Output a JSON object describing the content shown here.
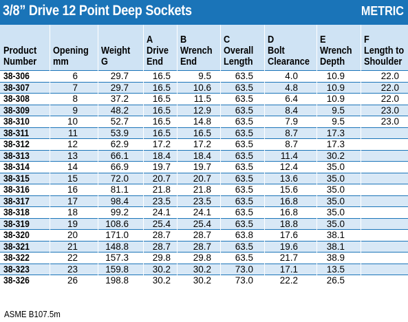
{
  "title": "3/8” Drive 12 Point Deep Sockets",
  "badge": "METRIC",
  "footnote": "ASME B107.5m",
  "colors": {
    "header_bar": "#1a74b8",
    "header_row": "#cfe3f4",
    "stripe": "#d8e8f6"
  },
  "columns": [
    {
      "key": "product",
      "lines": [
        "Product",
        "Number"
      ]
    },
    {
      "key": "opening",
      "lines": [
        "Opening",
        "mm"
      ]
    },
    {
      "key": "weight",
      "lines": [
        "Weight",
        "G"
      ]
    },
    {
      "key": "a",
      "lines": [
        "A",
        "Drive",
        "End"
      ]
    },
    {
      "key": "b",
      "lines": [
        "B",
        "Wrench",
        "End"
      ]
    },
    {
      "key": "c",
      "lines": [
        "C",
        "Overall",
        "Length"
      ]
    },
    {
      "key": "d",
      "lines": [
        "D",
        "Bolt",
        "Clearance"
      ]
    },
    {
      "key": "e",
      "lines": [
        "E",
        "Wrench",
        "Depth"
      ]
    },
    {
      "key": "f",
      "lines": [
        "F",
        "Length to",
        "Shoulder"
      ]
    }
  ],
  "rows": [
    [
      "38-306",
      "6",
      "29.7",
      "16.5",
      "9.5",
      "63.5",
      "4.0",
      "10.9",
      "22.0"
    ],
    [
      "38-307",
      "7",
      "29.7",
      "16.5",
      "10.6",
      "63.5",
      "4.8",
      "10.9",
      "22.0"
    ],
    [
      "38-308",
      "8",
      "37.2",
      "16.5",
      "11.5",
      "63.5",
      "6.4",
      "10.9",
      "22.0"
    ],
    [
      "38-309",
      "9",
      "48.2",
      "16.5",
      "12.9",
      "63.5",
      "8.4",
      "9.5",
      "23.0"
    ],
    [
      "38-310",
      "10",
      "52.7",
      "16.5",
      "14.8",
      "63.5",
      "7.9",
      "9.5",
      "23.0"
    ],
    [
      "38-311",
      "11",
      "53.9",
      "16.5",
      "16.5",
      "63.5",
      "8.7",
      "17.3",
      ""
    ],
    [
      "38-312",
      "12",
      "62.9",
      "17.2",
      "17.2",
      "63.5",
      "8.7",
      "17.3",
      ""
    ],
    [
      "38-313",
      "13",
      "66.1",
      "18.4",
      "18.4",
      "63.5",
      "11.4",
      "30.2",
      ""
    ],
    [
      "38-314",
      "14",
      "66.9",
      "19.7",
      "19.7",
      "63.5",
      "12.4",
      "35.0",
      ""
    ],
    [
      "38-315",
      "15",
      "72.0",
      "20.7",
      "20.7",
      "63.5",
      "13.6",
      "35.0",
      ""
    ],
    [
      "38-316",
      "16",
      "81.1",
      "21.8",
      "21.8",
      "63.5",
      "15.6",
      "35.0",
      ""
    ],
    [
      "38-317",
      "17",
      "98.4",
      "23.5",
      "23.5",
      "63.5",
      "16.8",
      "35.0",
      ""
    ],
    [
      "38-318",
      "18",
      "99.2",
      "24.1",
      "24.1",
      "63.5",
      "16.8",
      "35.0",
      ""
    ],
    [
      "38-319",
      "19",
      "108.6",
      "25.4",
      "25.4",
      "63.5",
      "18.8",
      "35.0",
      ""
    ],
    [
      "38-320",
      "20",
      "171.0",
      "28.7",
      "28.7",
      "63.8",
      "17.6",
      "38.1",
      ""
    ],
    [
      "38-321",
      "21",
      "148.8",
      "28.7",
      "28.7",
      "63.5",
      "19.6",
      "38.1",
      ""
    ],
    [
      "38-322",
      "22",
      "157.3",
      "29.8",
      "29.8",
      "63.5",
      "21.7",
      "38.9",
      ""
    ],
    [
      "38-323",
      "23",
      "159.8",
      "30.2",
      "30.2",
      "73.0",
      "17.1",
      "13.5",
      ""
    ],
    [
      "38-326",
      "26",
      "198.8",
      "30.2",
      "30.2",
      "73.0",
      "22.2",
      "26.5",
      ""
    ]
  ]
}
